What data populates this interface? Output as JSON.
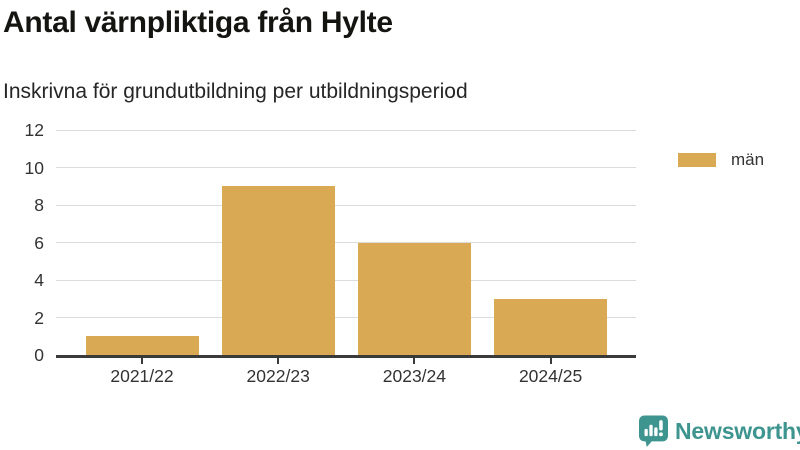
{
  "chart_data": {
    "type": "bar",
    "title": "Antal värnpliktiga från Hylte",
    "subtitle": "Inskrivna för grundutbildning per utbildningsperiod",
    "categories": [
      "2021/22",
      "2022/23",
      "2023/24",
      "2024/25"
    ],
    "series": [
      {
        "name": "män",
        "values": [
          1,
          9,
          6,
          3
        ],
        "color": "#D9A954"
      }
    ],
    "ylim": [
      0,
      12
    ],
    "yticks": [
      0,
      2,
      4,
      6,
      8,
      10,
      12
    ],
    "grid": true,
    "legend_position": "right",
    "axis_color": "#3a3a3a",
    "gridline_color": "#dcdcdc"
  },
  "footer": {
    "brand": "Newsworthy",
    "brand_color": "#3E948E"
  }
}
